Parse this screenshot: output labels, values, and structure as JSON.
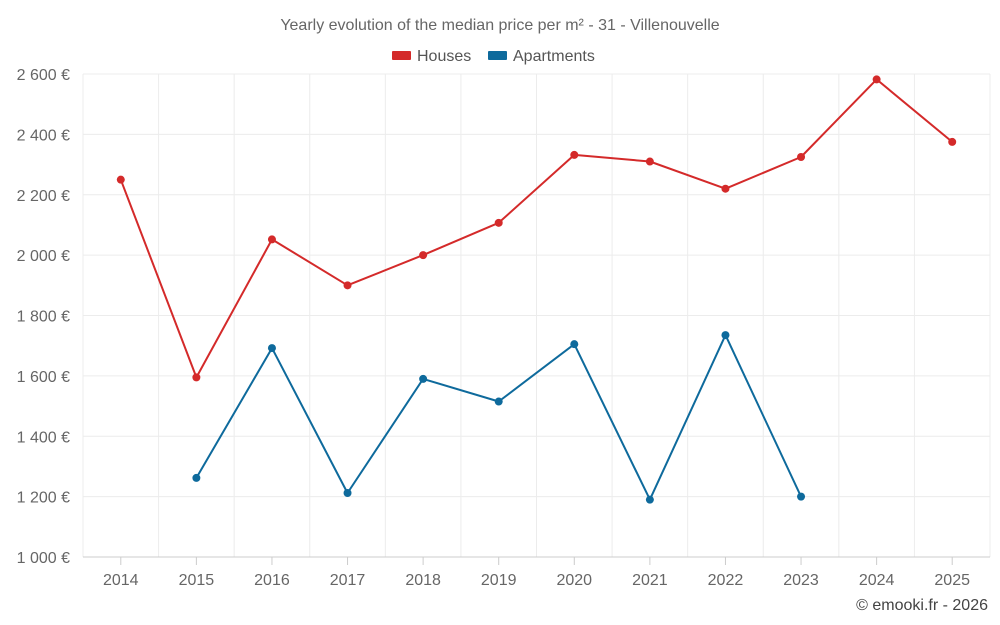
{
  "chart_data": {
    "type": "line",
    "title": "Yearly evolution of the median price per m² - 31 - Villenouvelle",
    "categories": [
      "2014",
      "2015",
      "2016",
      "2017",
      "2018",
      "2019",
      "2020",
      "2021",
      "2022",
      "2023",
      "2024",
      "2025"
    ],
    "ylim": [
      1000,
      2600
    ],
    "yticks": [
      1000,
      1200,
      1400,
      1600,
      1800,
      2000,
      2200,
      2400,
      2600
    ],
    "ytick_labels": [
      "1 000 €",
      "1 200 €",
      "1 400 €",
      "1 600 €",
      "1 800 €",
      "2 000 €",
      "2 200 €",
      "2 400 €",
      "2 600 €"
    ],
    "grid": true,
    "legend_position": "top-center",
    "series": [
      {
        "name": "Houses",
        "color": "#d42a2a",
        "values": [
          2250,
          1595,
          2052,
          1900,
          2000,
          2107,
          2332,
          2310,
          2220,
          2325,
          2582,
          2375
        ]
      },
      {
        "name": "Apartments",
        "color": "#0e6a9c",
        "values": [
          null,
          1262,
          1692,
          1212,
          1590,
          1515,
          1705,
          1190,
          1735,
          1200,
          null,
          null
        ]
      }
    ],
    "credit": "© emooki.fr - 2026"
  }
}
